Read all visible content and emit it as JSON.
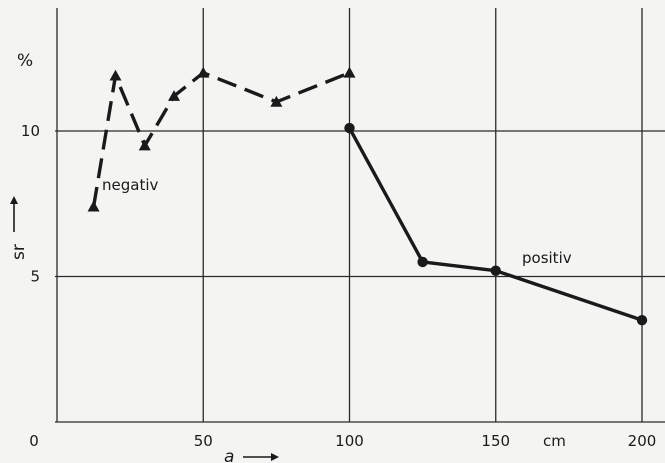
{
  "chart_data": {
    "type": "line",
    "xlabel": "a",
    "ylabel": "sr",
    "x_unit": "cm",
    "y_unit": "%",
    "xlim": [
      0,
      200
    ],
    "ylim": [
      0,
      14.5
    ],
    "x_ticks": [
      0,
      50,
      100,
      150,
      200
    ],
    "x_tick_labels": [
      "0",
      "50",
      "100",
      "150",
      "200"
    ],
    "y_ticks": [
      5,
      10
    ],
    "y_tick_labels": [
      "5",
      "10"
    ],
    "grid": true,
    "series": [
      {
        "name": "negativ",
        "style": "dashed",
        "marker": "triangle",
        "x": [
          12.5,
          20,
          30,
          40,
          50,
          75,
          100
        ],
        "y": [
          7.4,
          11.9,
          9.5,
          11.2,
          12.0,
          11.0,
          12.0
        ]
      },
      {
        "name": "positiv",
        "style": "solid",
        "marker": "circle",
        "x": [
          100,
          125,
          150,
          200
        ],
        "y": [
          10.1,
          5.5,
          5.2,
          3.5
        ]
      }
    ]
  },
  "colors": {
    "background": "#f4f4f2",
    "ink": "#1a1a1a",
    "grid": "#2a2a2a"
  }
}
